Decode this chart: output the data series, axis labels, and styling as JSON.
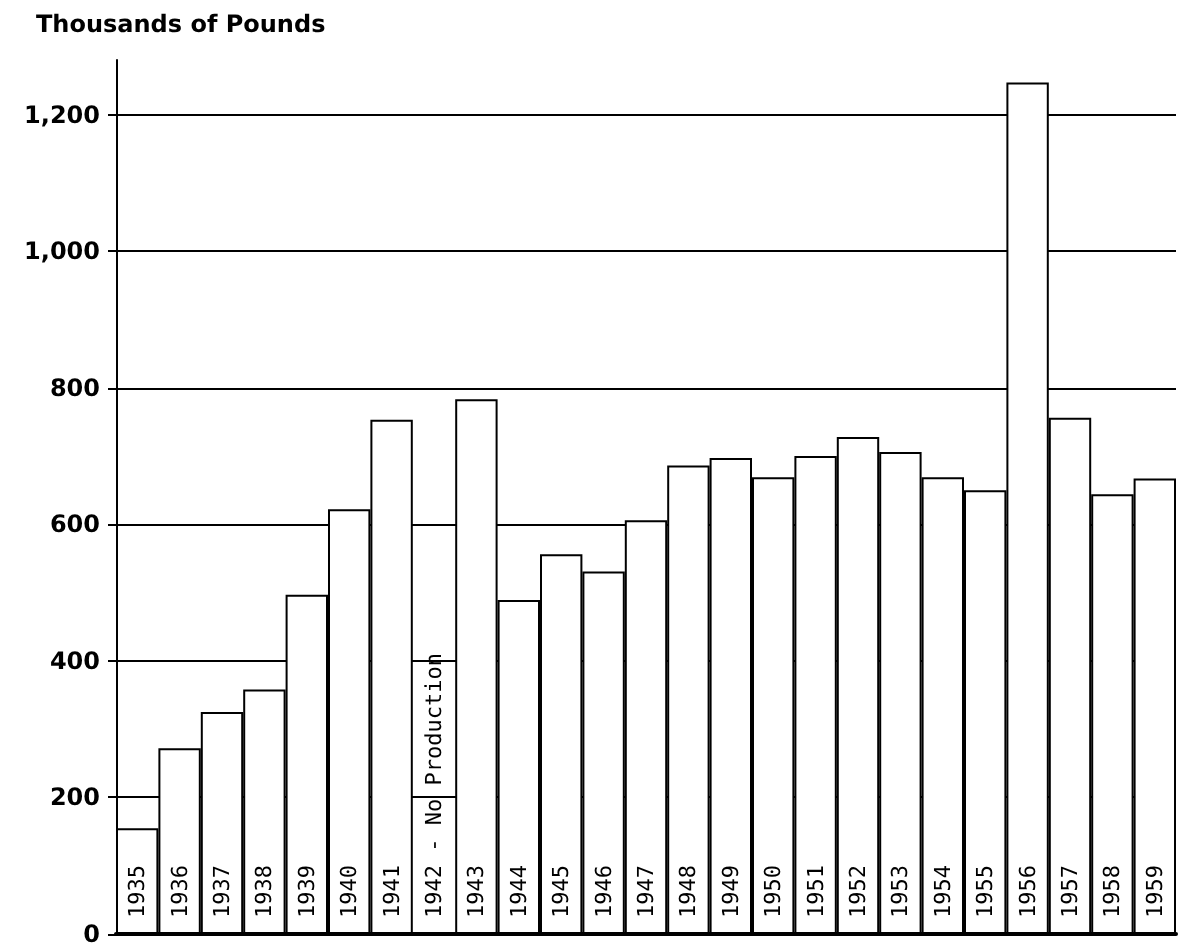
{
  "chart_data": {
    "type": "bar",
    "ylabel": "Thousands of Pounds",
    "categories": [
      "1935",
      "1936",
      "1937",
      "1938",
      "1939",
      "1940",
      "1941",
      "1942 - No Production",
      "1943",
      "1944",
      "1945",
      "1946",
      "1947",
      "1948",
      "1949",
      "1950",
      "1951",
      "1952",
      "1953",
      "1954",
      "1955",
      "1956",
      "1957",
      "1958",
      "1959"
    ],
    "values": [
      155,
      272,
      325,
      358,
      497,
      622,
      753,
      null,
      783,
      489,
      556,
      531,
      606,
      686,
      697,
      669,
      700,
      728,
      706,
      669,
      650,
      1247,
      756,
      644,
      667
    ],
    "color": "#ffffff",
    "ylim": [
      0,
      1280
    ],
    "yticks": [
      0,
      {
        "value": 200,
        "label": "200"
      },
      {
        "value": 400,
        "label": "400"
      },
      {
        "value": 600,
        "label": "600"
      },
      {
        "value": 800,
        "label": "800"
      },
      {
        "value": 1000,
        "label": "1,000"
      },
      {
        "value": 1200,
        "label": "1,200"
      }
    ],
    "grid": "y"
  }
}
